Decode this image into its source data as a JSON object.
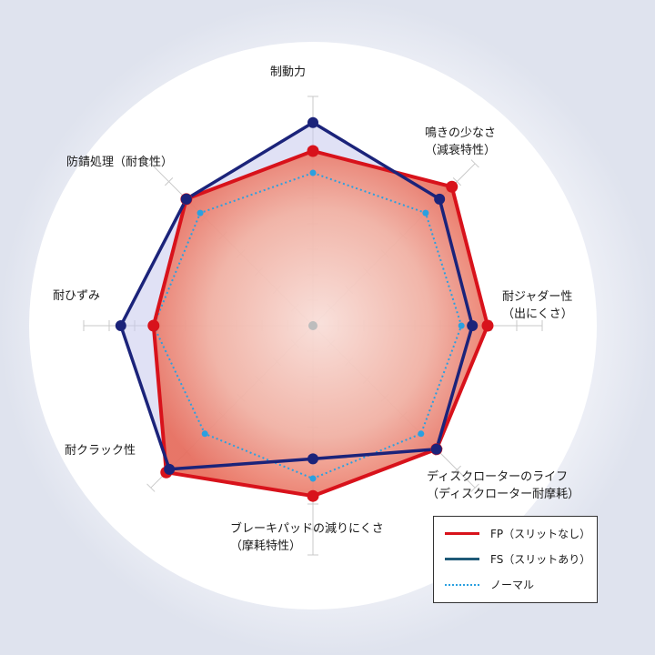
{
  "chart_data": {
    "type": "radar",
    "axes": [
      {
        "lines": [
          "制動力"
        ]
      },
      {
        "lines": [
          "鳴きの少なさ",
          "（減衰特性）"
        ]
      },
      {
        "lines": [
          "耐ジャダー性",
          "（出にくさ）"
        ]
      },
      {
        "lines": [
          "ディスクローターのライフ",
          "（ディスクローター耐摩耗）"
        ]
      },
      {
        "lines": [
          "ブレーキパッドの減りにくさ",
          "（摩耗特性）"
        ]
      },
      {
        "lines": [
          "耐クラック性"
        ]
      },
      {
        "lines": [
          "耐ひずみ"
        ]
      },
      {
        "lines": [
          "防錆処理（耐食性）"
        ]
      }
    ],
    "rmax": 10,
    "ticks": 9,
    "series": [
      {
        "name": "FP（スリットなし）",
        "color": "#d8121b",
        "style": "solid",
        "values": [
          8.0,
          9.0,
          8.0,
          8.0,
          7.8,
          9.5,
          7.3,
          8.2
        ]
      },
      {
        "name": "FS（スリットあり）",
        "color": "#1b237a",
        "style": "solid",
        "values": [
          9.3,
          8.2,
          7.3,
          8.0,
          6.1,
          9.3,
          8.8,
          8.2
        ]
      },
      {
        "name": "ノーマル",
        "color": "#2aa0e0",
        "style": "dotted",
        "values": [
          7.0,
          7.3,
          6.8,
          7.0,
          7.0,
          7.0,
          7.3,
          7.3
        ]
      }
    ],
    "legend": "bottom-right"
  }
}
